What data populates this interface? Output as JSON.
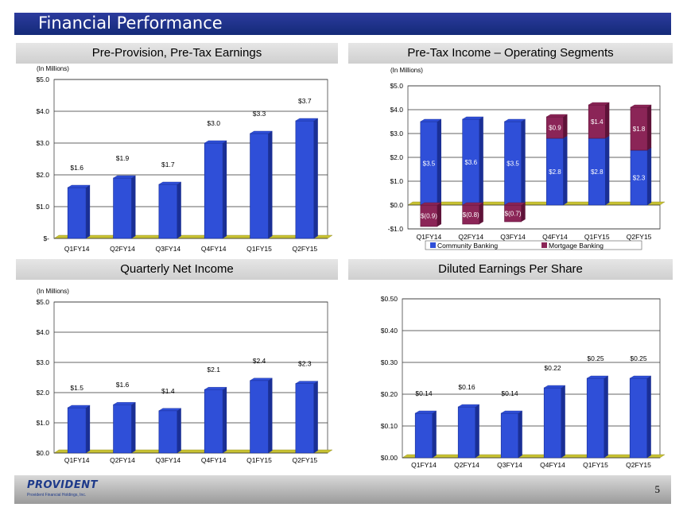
{
  "slide": {
    "title": "Financial Performance",
    "page_number": "5",
    "logo_text": "PROVIDENT",
    "logo_subtext": "Provident Financial Holdings, Inc."
  },
  "colors": {
    "bar": "#2f4fd8",
    "bar_dark": "#1a2f95",
    "mortgage": "#8b2557",
    "floor": "#c8c232"
  },
  "chart_data": [
    {
      "id": "ppte",
      "type": "bar",
      "title": "Pre-Provision, Pre-Tax Earnings",
      "unit_label": "(In Millions)",
      "categories": [
        "Q1FY14",
        "Q2FY14",
        "Q3FY14",
        "Q4FY14",
        "Q1FY15",
        "Q2FY15"
      ],
      "values": [
        1.6,
        1.9,
        1.7,
        3.0,
        3.3,
        3.7
      ],
      "data_labels": [
        "$1.6",
        "$1.9",
        "$1.7",
        "$3.0",
        "$3.3",
        "$3.7"
      ],
      "ylim": [
        0,
        5
      ],
      "yticks": [
        0,
        1,
        2,
        3,
        4,
        5
      ],
      "ytick_labels": [
        "$-",
        "$1.0",
        "$2.0",
        "$3.0",
        "$4.0",
        "$5.0"
      ],
      "grid": true
    },
    {
      "id": "segments",
      "type": "bar",
      "stacked": true,
      "title": "Pre-Tax Income – Operating Segments",
      "unit_label": "(In Millions)",
      "categories": [
        "Q1FY14",
        "Q2FY14",
        "Q3FY14",
        "Q4FY14",
        "Q1FY15",
        "Q2FY15"
      ],
      "series": [
        {
          "name": "Community Banking",
          "values": [
            3.5,
            3.6,
            3.5,
            2.8,
            2.8,
            2.3
          ],
          "data_labels": [
            "$3.5",
            "$3.6",
            "$3.5",
            "$2.8",
            "$2.8",
            "$2.3"
          ]
        },
        {
          "name": "Mortgage Banking",
          "values": [
            -0.9,
            -0.8,
            -0.7,
            0.9,
            1.4,
            1.8
          ],
          "data_labels": [
            "$(0.9)",
            "$(0.8)",
            "$(0.7)",
            "$0.9",
            "$1.4",
            "$1.8"
          ]
        }
      ],
      "ylim": [
        -1,
        5
      ],
      "yticks": [
        -1,
        0,
        1,
        2,
        3,
        4,
        5
      ],
      "ytick_labels": [
        "-$1.0",
        "$0.0",
        "$1.0",
        "$2.0",
        "$3.0",
        "$4.0",
        "$5.0"
      ],
      "legend": "bottom",
      "grid": true
    },
    {
      "id": "netincome",
      "type": "bar",
      "title": "Quarterly Net Income",
      "unit_label": "(In Millions)",
      "categories": [
        "Q1FY14",
        "Q2FY14",
        "Q3FY14",
        "Q4FY14",
        "Q1FY15",
        "Q2FY15"
      ],
      "values": [
        1.5,
        1.6,
        1.4,
        2.1,
        2.4,
        2.3
      ],
      "data_labels": [
        "$1.5",
        "$1.6",
        "$1.4",
        "$2.1",
        "$2.4",
        "$2.3"
      ],
      "ylim": [
        0,
        5
      ],
      "yticks": [
        0,
        1,
        2,
        3,
        4,
        5
      ],
      "ytick_labels": [
        "$0.0",
        "$1.0",
        "$2.0",
        "$3.0",
        "$4.0",
        "$5.0"
      ],
      "grid": true
    },
    {
      "id": "eps",
      "type": "bar",
      "title": "Diluted Earnings Per Share",
      "unit_label": "",
      "categories": [
        "Q1FY14",
        "Q2FY14",
        "Q3FY14",
        "Q4FY14",
        "Q1FY15",
        "Q2FY15"
      ],
      "values": [
        0.14,
        0.16,
        0.14,
        0.22,
        0.25,
        0.25
      ],
      "data_labels": [
        "$0.14",
        "$0.16",
        "$0.14",
        "$0.22",
        "$0.25",
        "$0.25"
      ],
      "ylim": [
        0,
        0.5
      ],
      "yticks": [
        0,
        0.1,
        0.2,
        0.3,
        0.4,
        0.5
      ],
      "ytick_labels": [
        "$0.00",
        "$0.10",
        "$0.20",
        "$0.30",
        "$0.40",
        "$0.50"
      ],
      "grid": true
    }
  ]
}
